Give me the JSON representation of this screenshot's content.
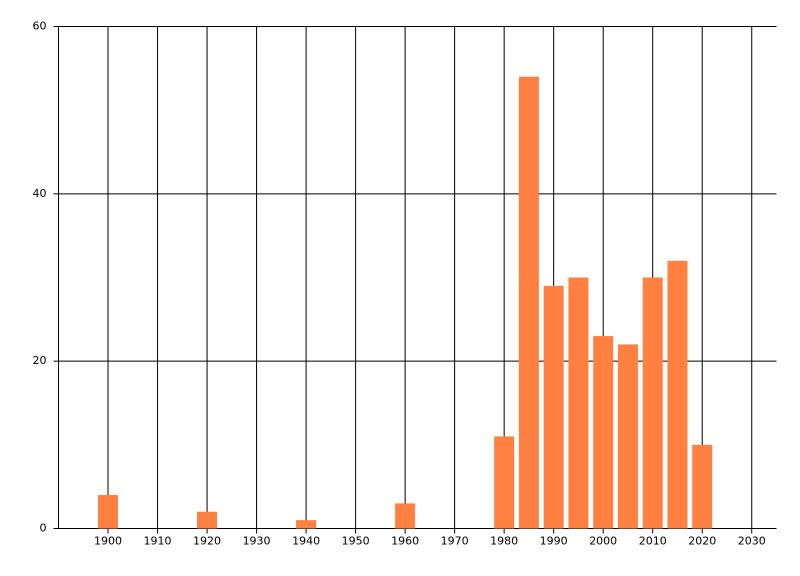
{
  "chart_data": {
    "type": "bar",
    "x": [
      1900,
      1920,
      1940,
      1960,
      1980,
      1985,
      1990,
      1995,
      2000,
      2005,
      2010,
      2015,
      2020
    ],
    "values": [
      4,
      2,
      1,
      3,
      11,
      54,
      29,
      30,
      23,
      22,
      30,
      32,
      10
    ],
    "color": "#ff8040",
    "xlim": [
      1890,
      2035
    ],
    "xticks": [
      1900,
      1910,
      1920,
      1930,
      1940,
      1950,
      1960,
      1970,
      1980,
      1990,
      2000,
      2010,
      2020,
      2030
    ],
    "ylim": [
      0,
      60
    ],
    "yticks": [
      0,
      20,
      40,
      60
    ],
    "grid": true
  }
}
